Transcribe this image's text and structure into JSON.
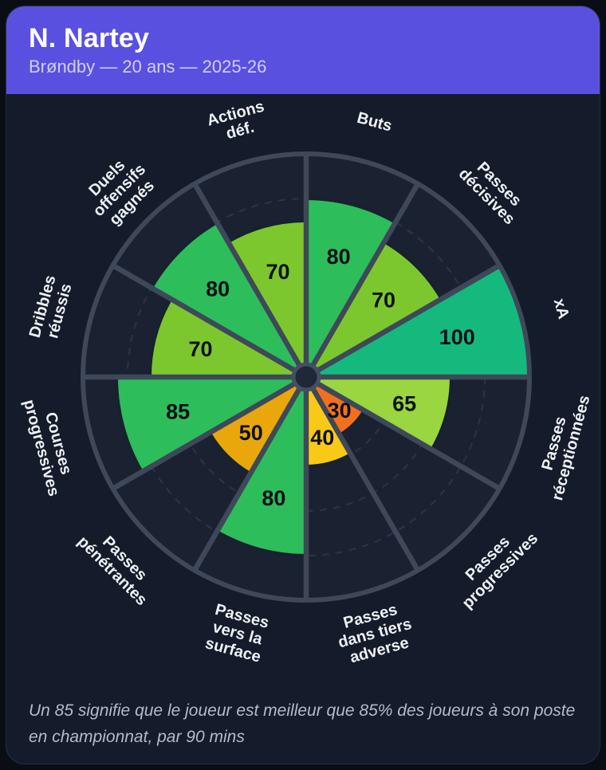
{
  "header": {
    "title": "N. Nartey",
    "subtitle": "Brøndby — 20 ans — 2025-26"
  },
  "footer": {
    "note": "Un 85 signifie que le joueur est meilleur que 85% des joueurs à son poste en championnat, par 90 mins"
  },
  "chart_data": {
    "type": "pizza",
    "description": "Percentile pizza chart: 12 sectors of 30 degrees each, clockwise from 12 o'clock; sector radius proportional to percentile value (0-100)",
    "max": 100,
    "grid_ticks": [
      20,
      40,
      60,
      80
    ],
    "visible_tick_label": "80",
    "legend_position": "none",
    "grid": "dashed-circles",
    "categories": [
      "Buts",
      "Passes décisives",
      "xA",
      "Passes réceptionnées",
      "Passes progressives",
      "Passes dans tiers adverse",
      "Passes vers la surface",
      "Passes pénétrantes",
      "Courses progressives",
      "Dribbles réussis",
      "Duels offensifs gagnés",
      "Actions déf."
    ],
    "category_lines": [
      [
        "Buts"
      ],
      [
        "Passes",
        "décisives"
      ],
      [
        "xA"
      ],
      [
        "Passes",
        "réceptionnées"
      ],
      [
        "Passes",
        "progressives"
      ],
      [
        "Passes",
        "dans tiers",
        "adverse"
      ],
      [
        "Passes",
        "vers la",
        "surface"
      ],
      [
        "Passes",
        "pénétrantes"
      ],
      [
        "Courses",
        "progressives"
      ],
      [
        "Dribbles",
        "réussis"
      ],
      [
        "Duels",
        "offensifs",
        "gagnés"
      ],
      [
        "Actions",
        "déf."
      ]
    ],
    "values": [
      80,
      70,
      100,
      65,
      30,
      40,
      80,
      50,
      85,
      70,
      80,
      70
    ],
    "colors": [
      "#2ebd5b",
      "#7dc72e",
      "#16b97d",
      "#99d63f",
      "#f1701e",
      "#f9c917",
      "#2ebd5b",
      "#e9a70b",
      "#2ebd5b",
      "#7dc72e",
      "#2ebd5b",
      "#7dc72e"
    ]
  },
  "theme": {
    "page_bg": "#0a0d13",
    "card_bg": "#141b2a",
    "card_border": "#272e3f",
    "header_bg": "#5a50e0",
    "title_color": "#ffffff",
    "subtitle_color": "#d2cff3",
    "inner_bg": "#1a2232",
    "spoke_color": "#3e4859",
    "grid_color": "#39435a",
    "hub_fill": "#202737",
    "hub_ring": "#454f61",
    "slice_outline": "#18212f",
    "value_text_color": "#0c1017",
    "category_label_color": "#eef1f6",
    "tick_label_color": "#515b70",
    "footnote_color": "#b4bbc8"
  }
}
